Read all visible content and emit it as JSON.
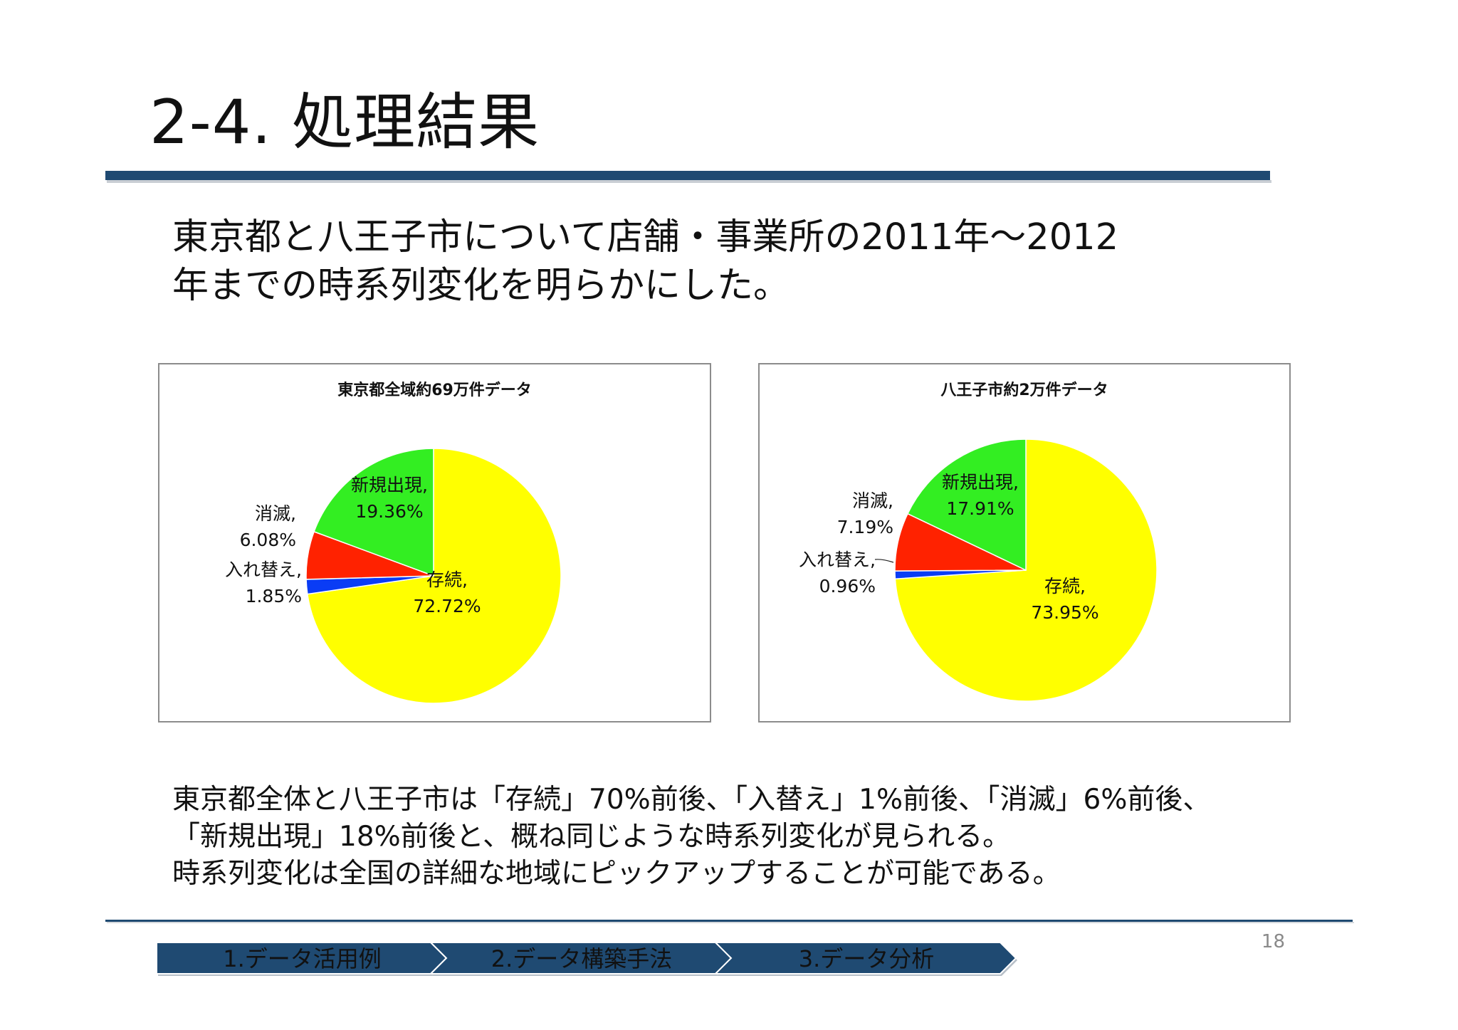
{
  "slide": {
    "title": "2-4. 処理結果",
    "page_number": "18"
  },
  "intro": {
    "line1": "東京都と八王子市について店舗・事業所の2011年～2012",
    "line2": "年までの時系列変化を明らかにした。"
  },
  "summary": {
    "line1": "東京都全体と八王子市は「存続」70%前後、「入替え」1%前後、「消滅」6%前後、",
    "line2": "「新規出現」18%前後と、概ね同じような時系列変化が見られる。",
    "line3": "時系列変化は全国の詳細な地域にピックアップすることが可能である。"
  },
  "nav": {
    "items": [
      {
        "label": "1.データ活用例"
      },
      {
        "label": "2.データ構築手法"
      },
      {
        "label": "3.データ分析"
      }
    ],
    "color": "#1f4a72"
  },
  "chart_data": [
    {
      "type": "pie",
      "title": "東京都全域約69万件データ",
      "slices": [
        {
          "name": "存続",
          "value": 72.72,
          "label_name": "存続,",
          "label_value": "72.72%",
          "color": "#ffff00"
        },
        {
          "name": "入れ替え",
          "value": 1.85,
          "label_name": "入れ替え,",
          "label_value": "1.85%",
          "color": "#0a3cf5"
        },
        {
          "name": "消滅",
          "value": 6.08,
          "label_name": "消滅,",
          "label_value": "6.08%",
          "color": "#ff2200"
        },
        {
          "name": "新規出現",
          "value": 19.36,
          "label_name": "新規出現,",
          "label_value": "19.36%",
          "color": "#33ee22"
        }
      ]
    },
    {
      "type": "pie",
      "title": "八王子市約2万件データ",
      "slices": [
        {
          "name": "存続",
          "value": 73.95,
          "label_name": "存続,",
          "label_value": "73.95%",
          "color": "#ffff00"
        },
        {
          "name": "入れ替え",
          "value": 0.96,
          "label_name": "入れ替え,",
          "label_value": "0.96%",
          "color": "#0a3cf5"
        },
        {
          "name": "消滅",
          "value": 7.19,
          "label_name": "消滅,",
          "label_value": "7.19%",
          "color": "#ff2200"
        },
        {
          "name": "新規出現",
          "value": 17.91,
          "label_name": "新規出現,",
          "label_value": "17.91%",
          "color": "#33ee22"
        }
      ]
    }
  ]
}
